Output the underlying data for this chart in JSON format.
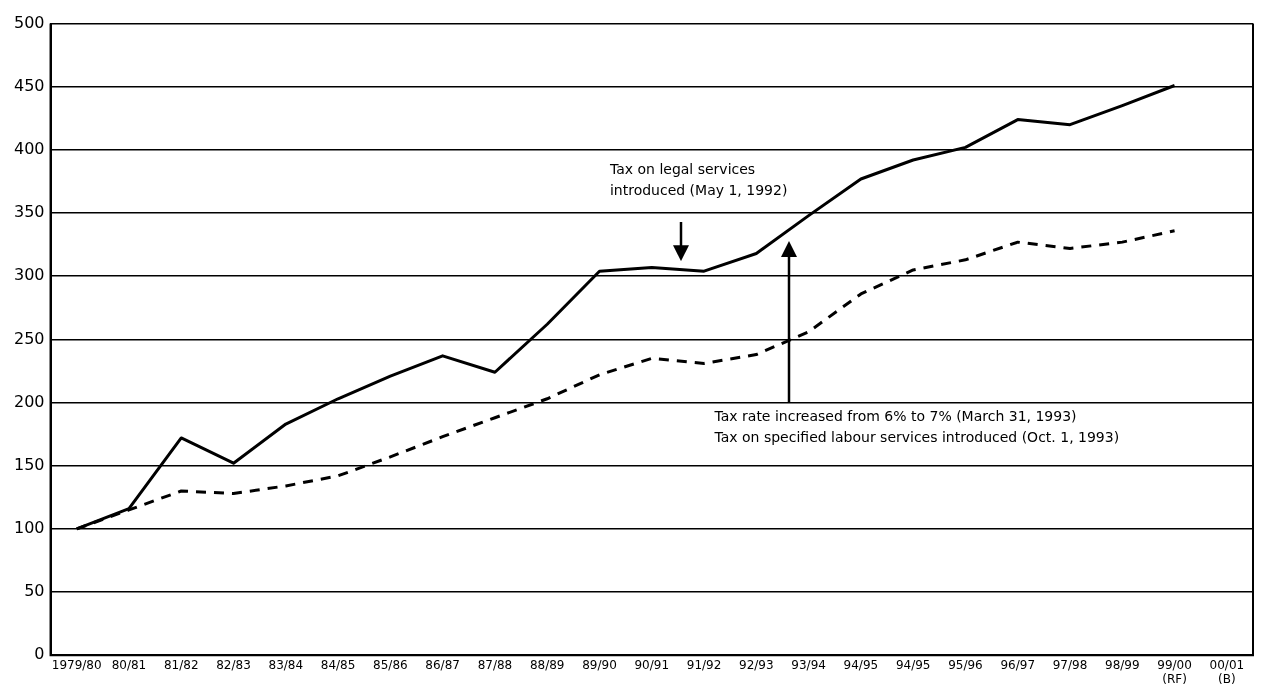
{
  "chart_data": {
    "type": "line",
    "categories": [
      "1979/80",
      "80/81",
      "81/82",
      "82/83",
      "83/84",
      "84/85",
      "85/86",
      "86/87",
      "87/88",
      "88/89",
      "89/90",
      "90/91",
      "91/92",
      "92/93",
      "93/94",
      "94/95",
      "94/95",
      "95/96",
      "96/97",
      "97/98",
      "98/99",
      "99/00\n(RF)",
      "00/01\n(B)"
    ],
    "series": [
      {
        "color": "#000000",
        "line_style": "solid",
        "values": [
          100,
          116,
          172,
          152,
          183,
          203,
          221,
          237,
          224,
          262,
          304,
          307,
          304,
          318,
          348,
          377,
          392,
          402,
          424,
          420,
          435,
          451,
          null
        ]
      },
      {
        "color": "#000000",
        "line_style": "dashed",
        "values": [
          100,
          115,
          130,
          128,
          134,
          142,
          157,
          173,
          188,
          203,
          222,
          235,
          231,
          238,
          256,
          286,
          305,
          313,
          327,
          322,
          327,
          336,
          null
        ]
      }
    ],
    "ylim": [
      0,
      500
    ],
    "yticks": [
      0,
      50,
      100,
      150,
      200,
      250,
      300,
      350,
      400,
      450,
      500
    ],
    "grid": "y",
    "legend": false,
    "marker": "none",
    "annotations": [
      "Tax on legal services\nintroduced (May 1, 1992)",
      "Tax rate increased from 6% to 7% (March 31, 1993)\nTax on specified labour services introduced (Oct. 1, 1993)"
    ]
  }
}
